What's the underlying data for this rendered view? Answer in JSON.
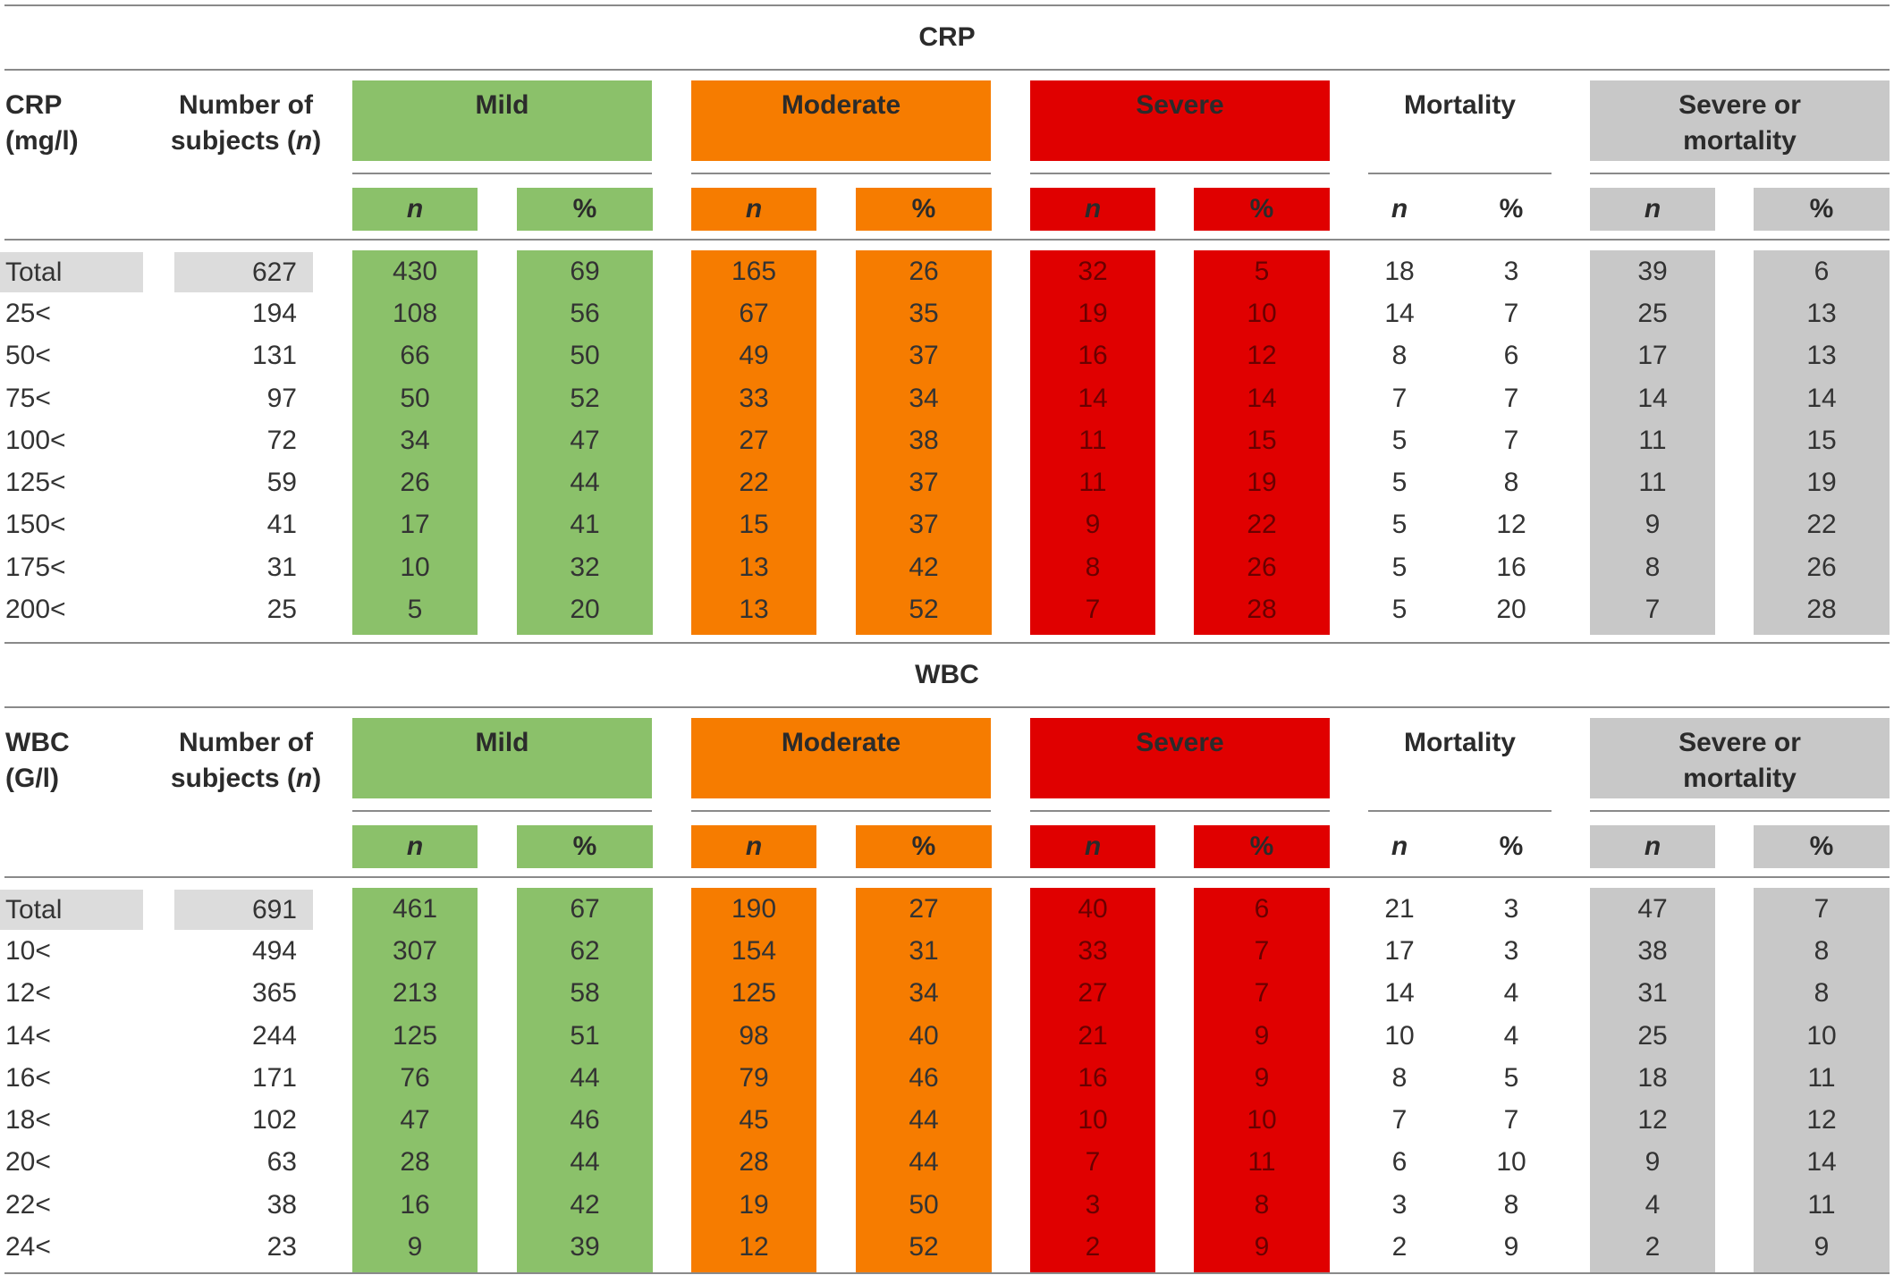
{
  "colors": {
    "mild": "#8bc16a",
    "moderate": "#f67c00",
    "severe": "#e00000",
    "gray": "#c8c8c8",
    "total_bg": "#dcdcdc"
  },
  "column_headers": {
    "mild": "Mild",
    "moderate": "Moderate",
    "severe": "Severe",
    "mortality": "Mortality",
    "severe_or_mortality_line1": "Severe or",
    "severe_or_mortality_line2": "mortality",
    "subjects_line1": "Number of",
    "subjects_line2": "subjects (",
    "subjects_n": "n",
    "subjects_close": ")",
    "n": "n",
    "pct": "%"
  },
  "sections": [
    {
      "title": "CRP",
      "param_label": "CRP (mg/l)",
      "rows": [
        [
          "Total",
          "627",
          "430",
          "69",
          "165",
          "26",
          "32",
          "5",
          "18",
          "3",
          "39",
          "6"
        ],
        [
          "25<",
          "194",
          "108",
          "56",
          "67",
          "35",
          "19",
          "10",
          "14",
          "7",
          "25",
          "13"
        ],
        [
          "50<",
          "131",
          "66",
          "50",
          "49",
          "37",
          "16",
          "12",
          "8",
          "6",
          "17",
          "13"
        ],
        [
          "75<",
          "97",
          "50",
          "52",
          "33",
          "34",
          "14",
          "14",
          "7",
          "7",
          "14",
          "14"
        ],
        [
          "100<",
          "72",
          "34",
          "47",
          "27",
          "38",
          "11",
          "15",
          "5",
          "7",
          "11",
          "15"
        ],
        [
          "125<",
          "59",
          "26",
          "44",
          "22",
          "37",
          "11",
          "19",
          "5",
          "8",
          "11",
          "19"
        ],
        [
          "150<",
          "41",
          "17",
          "41",
          "15",
          "37",
          "9",
          "22",
          "5",
          "12",
          "9",
          "22"
        ],
        [
          "175<",
          "31",
          "10",
          "32",
          "13",
          "42",
          "8",
          "26",
          "5",
          "16",
          "8",
          "26"
        ],
        [
          "200<",
          "25",
          "5",
          "20",
          "13",
          "52",
          "7",
          "28",
          "5",
          "20",
          "7",
          "28"
        ]
      ]
    },
    {
      "title": "WBC",
      "param_label": "WBC (G/l)",
      "rows": [
        [
          "Total",
          "691",
          "461",
          "67",
          "190",
          "27",
          "40",
          "6",
          "21",
          "3",
          "47",
          "7"
        ],
        [
          "10<",
          "494",
          "307",
          "62",
          "154",
          "31",
          "33",
          "7",
          "17",
          "3",
          "38",
          "8"
        ],
        [
          "12<",
          "365",
          "213",
          "58",
          "125",
          "34",
          "27",
          "7",
          "14",
          "4",
          "31",
          "8"
        ],
        [
          "14<",
          "244",
          "125",
          "51",
          "98",
          "40",
          "21",
          "9",
          "10",
          "4",
          "25",
          "10"
        ],
        [
          "16<",
          "171",
          "76",
          "44",
          "79",
          "46",
          "16",
          "9",
          "8",
          "5",
          "18",
          "11"
        ],
        [
          "18<",
          "102",
          "47",
          "46",
          "45",
          "44",
          "10",
          "10",
          "7",
          "7",
          "12",
          "12"
        ],
        [
          "20<",
          "63",
          "28",
          "44",
          "28",
          "44",
          "7",
          "11",
          "6",
          "10",
          "9",
          "14"
        ],
        [
          "22<",
          "38",
          "16",
          "42",
          "19",
          "50",
          "3",
          "8",
          "3",
          "8",
          "4",
          "11"
        ],
        [
          "24<",
          "23",
          "9",
          "39",
          "12",
          "52",
          "2",
          "9",
          "2",
          "9",
          "2",
          "9"
        ]
      ]
    }
  ]
}
